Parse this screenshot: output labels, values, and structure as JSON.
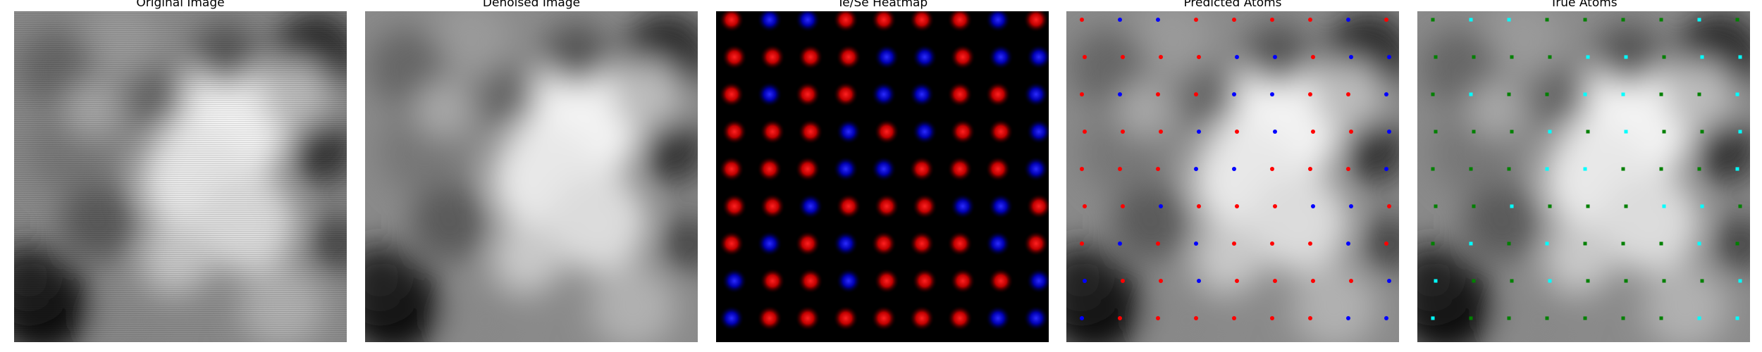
{
  "figure": {
    "panels": [
      {
        "title": "Original Image"
      },
      {
        "title": "Denoised Image"
      },
      {
        "title": "Te/Se Heatmap"
      },
      {
        "title": "Predicted Atoms"
      },
      {
        "title": "True Atoms"
      }
    ]
  },
  "colors": {
    "te": "#ff0000",
    "se": "#0000ff",
    "true_te": "#00ffff",
    "true_se": "#008000",
    "heatmap_bg": "#000000"
  }
}
